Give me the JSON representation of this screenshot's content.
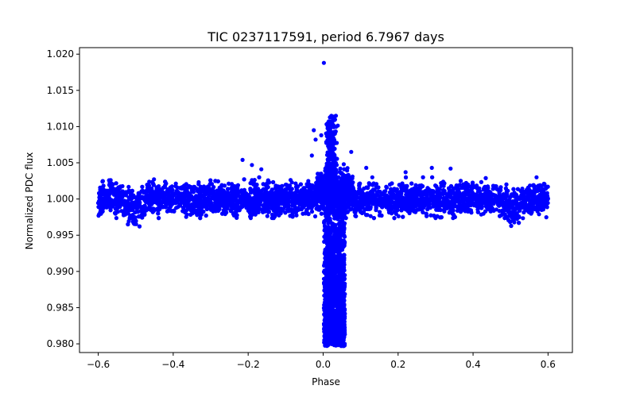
{
  "chart_data": {
    "type": "scatter",
    "title": "TIC 0237117591, period 6.7967 days",
    "xlabel": "Phase",
    "ylabel": "Normalized PDC flux",
    "xlim": [
      -0.65,
      0.665
    ],
    "ylim": [
      0.9788,
      1.0209
    ],
    "xticks": [
      -0.6,
      -0.4,
      -0.2,
      0.0,
      0.2,
      0.4,
      0.6
    ],
    "xtick_labels": [
      "−0.6",
      "−0.4",
      "−0.2",
      "0.0",
      "0.2",
      "0.4",
      "0.6"
    ],
    "yticks": [
      0.98,
      0.985,
      0.99,
      0.995,
      1.0,
      1.005,
      1.01,
      1.015,
      1.02
    ],
    "ytick_labels": [
      "0.980",
      "0.985",
      "0.990",
      "0.995",
      "1.000",
      "1.005",
      "1.010",
      "1.015",
      "1.020"
    ],
    "marker_color": "#0000ff",
    "grid": false,
    "series": [
      {
        "name": "flux",
        "description": "phase-folded light curve: flat baseline at 1.000 (scatter about +/-0.0025) from phase -0.6 to 0.6 with a deep transit near phase 0.03 reaching 0.980",
        "baseline": 1.0,
        "baseline_scatter": 0.0025,
        "transit_center": 0.03,
        "transit_depth_min": 0.98,
        "transit_peak_max": 1.0115,
        "secondary_dips": [
          {
            "center": -0.5,
            "min": 0.9965
          },
          {
            "center": 0.5,
            "min": 0.9965
          }
        ],
        "outliers": [
          [
            0.002,
            1.0188
          ],
          [
            -0.215,
            1.0054
          ],
          [
            -0.19,
            1.0047
          ],
          [
            -0.165,
            1.0041
          ],
          [
            -0.025,
            1.0095
          ],
          [
            -0.02,
            1.0082
          ],
          [
            0.055,
            1.0048
          ],
          [
            0.075,
            1.0065
          ],
          [
            0.115,
            1.0043
          ],
          [
            0.22,
            1.0037
          ],
          [
            0.29,
            1.0043
          ],
          [
            0.34,
            1.0042
          ],
          [
            -0.005,
            1.0088
          ],
          [
            -0.03,
            1.006
          ]
        ]
      }
    ]
  }
}
